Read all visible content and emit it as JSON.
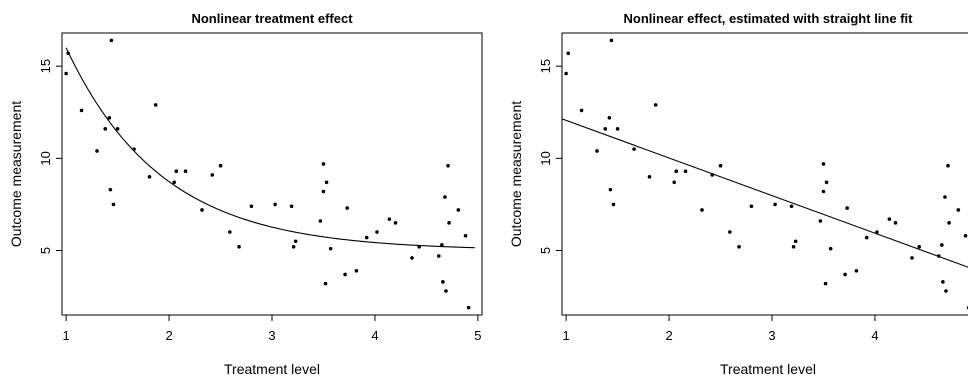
{
  "chart_data": [
    {
      "type": "scatter",
      "title": "Nonlinear treatment effect",
      "xlabel": "Treatment level",
      "ylabel": "Outcome measurement",
      "xlim": [
        0.96,
        5.04
      ],
      "ylim": [
        1.5,
        16.8
      ],
      "xticks": [
        1,
        2,
        3,
        4,
        5
      ],
      "yticks": [
        5,
        10,
        15
      ],
      "grid": false,
      "fit": {
        "kind": "exponential",
        "label": "",
        "asymptote": 5.0,
        "amplitude": 11.0,
        "rate": 1.08,
        "x_start": 1.0,
        "x_end": 4.97
      },
      "points": {
        "x": [
          1.0,
          1.02,
          1.15,
          1.3,
          1.38,
          1.42,
          1.43,
          1.44,
          1.46,
          1.5,
          1.66,
          1.81,
          1.87,
          2.05,
          2.07,
          2.16,
          2.32,
          2.42,
          2.5,
          2.59,
          2.68,
          2.8,
          3.03,
          3.19,
          3.21,
          3.23,
          3.47,
          3.5,
          3.5,
          3.52,
          3.53,
          3.57,
          3.71,
          3.73,
          3.82,
          3.92,
          4.02,
          4.14,
          4.2,
          4.36,
          4.43,
          4.62,
          4.65,
          4.66,
          4.68,
          4.69,
          4.71,
          4.72,
          4.81,
          4.88,
          4.91
        ],
        "y": [
          14.6,
          15.7,
          12.6,
          10.4,
          11.6,
          12.2,
          8.3,
          16.4,
          7.5,
          11.6,
          10.5,
          9.0,
          12.9,
          8.7,
          9.3,
          9.3,
          7.2,
          9.1,
          9.6,
          6.0,
          5.2,
          7.4,
          7.5,
          7.4,
          5.2,
          5.5,
          6.6,
          8.2,
          9.7,
          3.2,
          8.7,
          5.1,
          3.7,
          7.3,
          3.9,
          5.7,
          6.0,
          6.7,
          6.5,
          4.6,
          5.2,
          4.7,
          5.3,
          3.3,
          7.9,
          2.8,
          9.6,
          6.5,
          7.2,
          5.8,
          1.9
        ]
      }
    },
    {
      "type": "scatter",
      "title": "Nonlinear effect, estimated with straight line fit",
      "xlabel": "Treatment level",
      "ylabel": "Outcome measurement",
      "xlim": [
        0.96,
        5.04
      ],
      "ylim": [
        1.5,
        16.8
      ],
      "xticks": [
        1,
        2,
        3,
        4,
        5
      ],
      "yticks": [
        5,
        10,
        15
      ],
      "grid": false,
      "fit": {
        "kind": "linear",
        "label": "",
        "slope": -2.04,
        "intercept": 14.1,
        "x_start": 0.96,
        "x_end": 5.04
      },
      "points": {
        "x": [
          1.0,
          1.02,
          1.15,
          1.3,
          1.38,
          1.42,
          1.43,
          1.44,
          1.46,
          1.5,
          1.66,
          1.81,
          1.87,
          2.05,
          2.07,
          2.16,
          2.32,
          2.42,
          2.5,
          2.59,
          2.68,
          2.8,
          3.03,
          3.19,
          3.21,
          3.23,
          3.47,
          3.5,
          3.5,
          3.52,
          3.53,
          3.57,
          3.71,
          3.73,
          3.82,
          3.92,
          4.02,
          4.14,
          4.2,
          4.36,
          4.43,
          4.62,
          4.65,
          4.66,
          4.68,
          4.69,
          4.71,
          4.72,
          4.81,
          4.88,
          4.91
        ],
        "y": [
          14.6,
          15.7,
          12.6,
          10.4,
          11.6,
          12.2,
          8.3,
          16.4,
          7.5,
          11.6,
          10.5,
          9.0,
          12.9,
          8.7,
          9.3,
          9.3,
          7.2,
          9.1,
          9.6,
          6.0,
          5.2,
          7.4,
          7.5,
          7.4,
          5.2,
          5.5,
          6.6,
          8.2,
          9.7,
          3.2,
          8.7,
          5.1,
          3.7,
          7.3,
          3.9,
          5.7,
          6.0,
          6.7,
          6.5,
          4.6,
          5.2,
          4.7,
          5.3,
          3.3,
          7.9,
          2.8,
          9.6,
          6.5,
          7.2,
          5.8,
          1.9
        ]
      }
    }
  ]
}
